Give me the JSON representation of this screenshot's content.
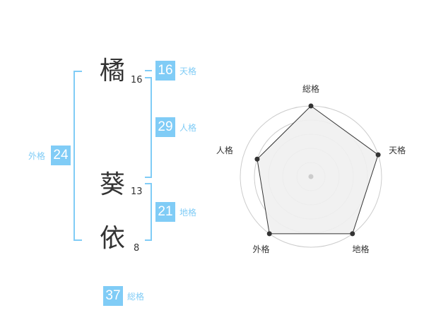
{
  "name": {
    "chars": [
      {
        "char": "橘",
        "strokes": "16"
      },
      {
        "char": "葵",
        "strokes": "13"
      },
      {
        "char": "依",
        "strokes": "8"
      }
    ]
  },
  "fortune": {
    "tenkaku": {
      "label": "天格",
      "value": "16"
    },
    "jinkaku": {
      "label": "人格",
      "value": "29"
    },
    "chikaku": {
      "label": "地格",
      "value": "21"
    },
    "gaikaku": {
      "label": "外格",
      "value": "24"
    },
    "soukaku": {
      "label": "総格",
      "value": "37"
    }
  },
  "colors": {
    "accent": "#80ccf6",
    "radar_fill": "#f0f0f0",
    "radar_line": "#333333",
    "grid": "#cccccc"
  },
  "chart_data": {
    "type": "radar",
    "categories": [
      "総格",
      "天格",
      "地格",
      "外格",
      "人格"
    ],
    "values": [
      5,
      5,
      5,
      5,
      4
    ],
    "rlim": [
      0,
      5
    ],
    "grid": true
  }
}
